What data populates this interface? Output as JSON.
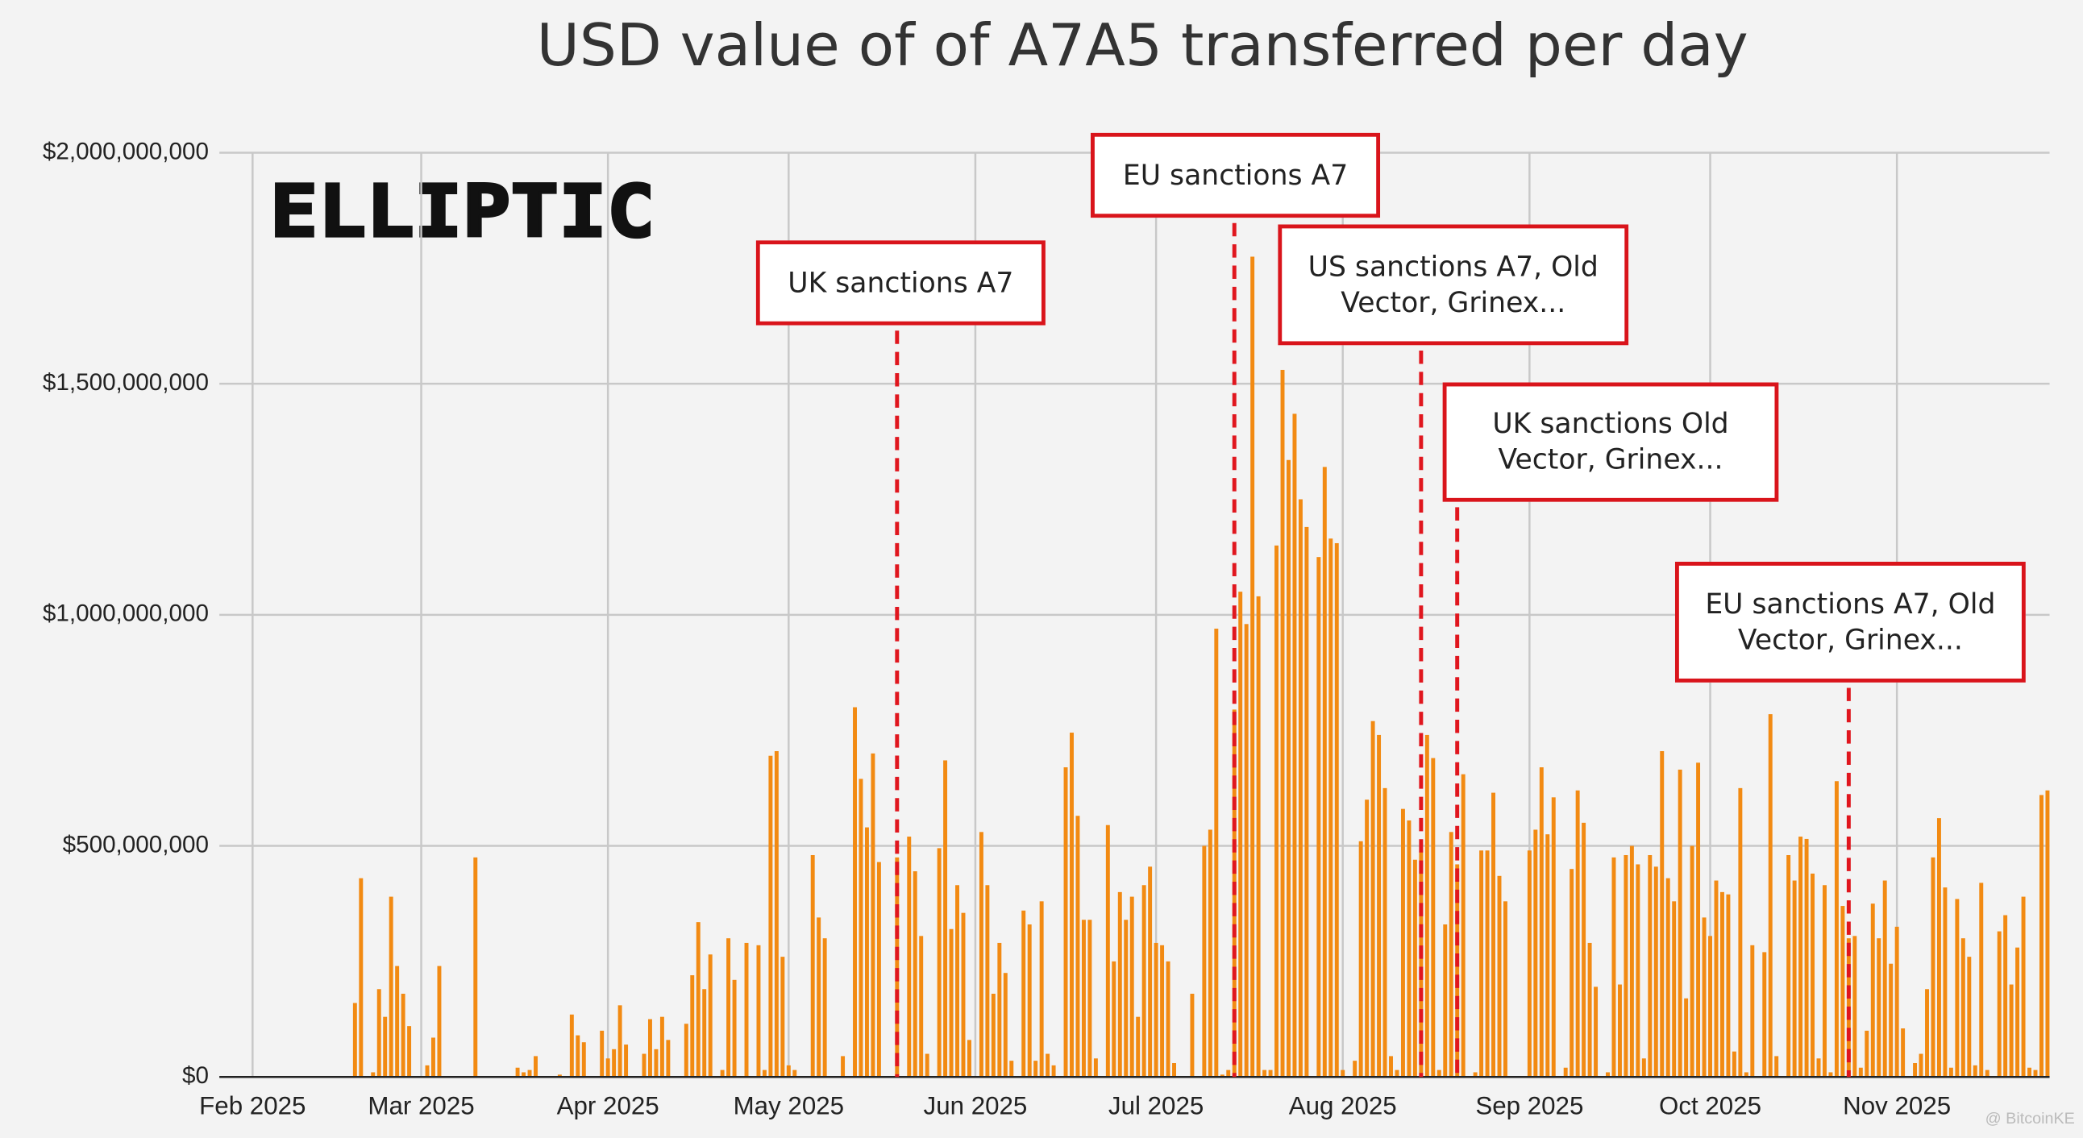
{
  "chart_data": {
    "type": "bar",
    "title": "USD value of of A7A5 transferred per day",
    "logo": "ELLIPTIC",
    "watermark": "@ BitcoinKE",
    "color": "#f28a12",
    "grid": true,
    "ylim": [
      0,
      2000000000
    ],
    "yticks": [
      {
        "value": 0,
        "label": "$0"
      },
      {
        "value": 500000000,
        "label": "$500,000,000"
      },
      {
        "value": 1000000000,
        "label": "$1,000,000,000"
      },
      {
        "value": 1500000000,
        "label": "$1,500,000,000"
      },
      {
        "value": 2000000000,
        "label": "$2,000,000,000"
      }
    ],
    "categories": [
      "Feb 2025",
      null,
      null,
      null,
      null,
      null,
      null,
      null,
      null,
      null,
      null,
      null,
      null,
      null,
      null,
      null,
      null,
      null,
      null,
      null,
      null,
      null,
      null,
      null,
      null,
      null,
      null,
      null,
      "Mar 2025",
      null,
      null,
      null,
      null,
      null,
      null,
      null,
      null,
      null,
      null,
      null,
      null,
      null,
      null,
      null,
      null,
      null,
      null,
      null,
      null,
      null,
      null,
      null,
      null,
      null,
      null,
      null,
      null,
      null,
      null,
      "Apr 2025",
      null,
      null,
      null,
      null,
      null,
      null,
      null,
      null,
      null,
      null,
      null,
      null,
      null,
      null,
      null,
      null,
      null,
      null,
      null,
      null,
      null,
      null,
      null,
      null,
      null,
      null,
      null,
      null,
      null,
      "May 2025",
      null,
      null,
      null,
      null,
      null,
      null,
      null,
      null,
      null,
      null,
      null,
      null,
      null,
      null,
      null,
      null,
      null,
      null,
      null,
      null,
      null,
      null,
      null,
      null,
      null,
      null,
      null,
      null,
      null,
      null,
      "Jun 2025",
      null,
      null,
      null,
      null,
      null,
      null,
      null,
      null,
      null,
      null,
      null,
      null,
      null,
      null,
      null,
      null,
      null,
      null,
      null,
      null,
      null,
      null,
      null,
      null,
      null,
      null,
      null,
      null,
      null,
      "Jul 2025",
      null,
      null,
      null,
      null,
      null,
      null,
      null,
      null,
      null,
      null,
      null,
      null,
      null,
      null,
      null,
      null,
      null,
      null,
      null,
      null,
      null,
      null,
      null,
      null,
      null,
      null,
      null,
      null,
      null,
      null,
      "Aug 2025",
      null,
      null,
      null,
      null,
      null,
      null,
      null,
      null,
      null,
      null,
      null,
      null,
      null,
      null,
      null,
      null,
      null,
      null,
      null,
      null,
      null,
      null,
      null,
      null,
      null,
      null,
      null,
      null,
      null,
      null,
      "Sep 2025",
      null,
      null,
      null,
      null,
      null,
      null,
      null,
      null,
      null,
      null,
      null,
      null,
      null,
      null,
      null,
      null,
      null,
      null,
      null,
      null,
      null,
      null,
      null,
      null,
      null,
      null,
      null,
      null,
      null,
      "Oct 2025",
      null,
      null,
      null,
      null,
      null,
      null,
      null,
      null,
      null,
      null,
      null,
      null,
      null,
      null,
      null,
      null,
      null,
      null,
      null,
      null,
      null,
      null,
      null,
      null,
      null,
      null,
      null,
      null,
      null,
      null,
      "Nov 2025",
      null,
      null,
      null,
      null,
      null,
      null,
      null,
      null,
      null,
      null,
      null,
      null,
      null,
      null,
      null,
      null,
      null,
      null,
      null,
      null,
      null,
      null,
      null,
      null,
      null
    ],
    "values": [
      0,
      0,
      0,
      0,
      0,
      0,
      0,
      0,
      0,
      0,
      0,
      0,
      0,
      0,
      0,
      0,
      0,
      160000000,
      430000000,
      0,
      10000000,
      190000000,
      130000000,
      390000000,
      240000000,
      180000000,
      110000000,
      0,
      0,
      25000000,
      85000000,
      240000000,
      0,
      0,
      0,
      0,
      0,
      475000000,
      0,
      0,
      0,
      0,
      0,
      0,
      20000000,
      10000000,
      15000000,
      45000000,
      0,
      0,
      0,
      5000000,
      0,
      135000000,
      90000000,
      75000000,
      0,
      0,
      100000000,
      40000000,
      60000000,
      155000000,
      70000000,
      0,
      0,
      50000000,
      125000000,
      60000000,
      130000000,
      80000000,
      0,
      0,
      115000000,
      220000000,
      335000000,
      190000000,
      265000000,
      0,
      15000000,
      300000000,
      210000000,
      0,
      290000000,
      0,
      285000000,
      15000000,
      695000000,
      705000000,
      260000000,
      25000000,
      15000000,
      0,
      0,
      480000000,
      345000000,
      300000000,
      0,
      0,
      45000000,
      0,
      800000000,
      645000000,
      540000000,
      700000000,
      465000000,
      0,
      0,
      475000000,
      0,
      520000000,
      445000000,
      305000000,
      50000000,
      0,
      495000000,
      685000000,
      320000000,
      415000000,
      355000000,
      80000000,
      0,
      530000000,
      415000000,
      180000000,
      290000000,
      225000000,
      35000000,
      0,
      360000000,
      330000000,
      35000000,
      380000000,
      50000000,
      25000000,
      0,
      670000000,
      745000000,
      565000000,
      340000000,
      340000000,
      40000000,
      0,
      545000000,
      250000000,
      400000000,
      340000000,
      390000000,
      130000000,
      415000000,
      455000000,
      290000000,
      285000000,
      250000000,
      30000000,
      0,
      0,
      180000000,
      0,
      500000000,
      535000000,
      970000000,
      5000000,
      15000000,
      795000000,
      1050000000,
      980000000,
      1775000000,
      1040000000,
      15000000,
      15000000,
      1150000000,
      1530000000,
      1335000000,
      1435000000,
      1250000000,
      1190000000,
      0,
      1125000000,
      1320000000,
      1165000000,
      1155000000,
      15000000,
      0,
      35000000,
      510000000,
      600000000,
      770000000,
      740000000,
      625000000,
      45000000,
      15000000,
      580000000,
      555000000,
      470000000,
      490000000,
      740000000,
      690000000,
      15000000,
      330000000,
      530000000,
      460000000,
      655000000,
      0,
      10000000,
      490000000,
      490000000,
      615000000,
      435000000,
      380000000,
      0,
      0,
      0,
      490000000,
      535000000,
      670000000,
      525000000,
      605000000,
      0,
      20000000,
      450000000,
      620000000,
      550000000,
      290000000,
      195000000,
      0,
      10000000,
      475000000,
      200000000,
      480000000,
      500000000,
      460000000,
      40000000,
      480000000,
      455000000,
      705000000,
      430000000,
      380000000,
      665000000,
      170000000,
      500000000,
      680000000,
      345000000,
      305000000,
      425000000,
      400000000,
      395000000,
      55000000,
      625000000,
      10000000,
      285000000,
      0,
      270000000,
      785000000,
      45000000,
      0,
      480000000,
      425000000,
      520000000,
      515000000,
      440000000,
      40000000,
      415000000,
      10000000,
      640000000,
      370000000,
      300000000,
      305000000,
      20000000,
      100000000,
      375000000,
      300000000,
      425000000,
      245000000,
      325000000,
      105000000,
      0,
      30000000,
      50000000,
      190000000,
      475000000,
      560000000,
      410000000,
      20000000,
      385000000,
      300000000,
      260000000,
      25000000,
      420000000,
      15000000,
      0,
      315000000,
      350000000,
      200000000,
      280000000,
      390000000,
      20000000,
      15000000,
      610000000,
      620000000
    ],
    "annotations": [
      {
        "text": "UK sanctions A7",
        "category_index": 107
      },
      {
        "text": "EU sanctions A7",
        "category_index": 163
      },
      {
        "text": "US sanctions A7, Old Vector, Grinex...",
        "category_index": 194
      },
      {
        "text": "UK sanctions Old Vector, Grinex...",
        "category_index": 200
      },
      {
        "text": "EU sanctions A7, Old Vector, Grinex...",
        "category_index": 265
      }
    ]
  }
}
